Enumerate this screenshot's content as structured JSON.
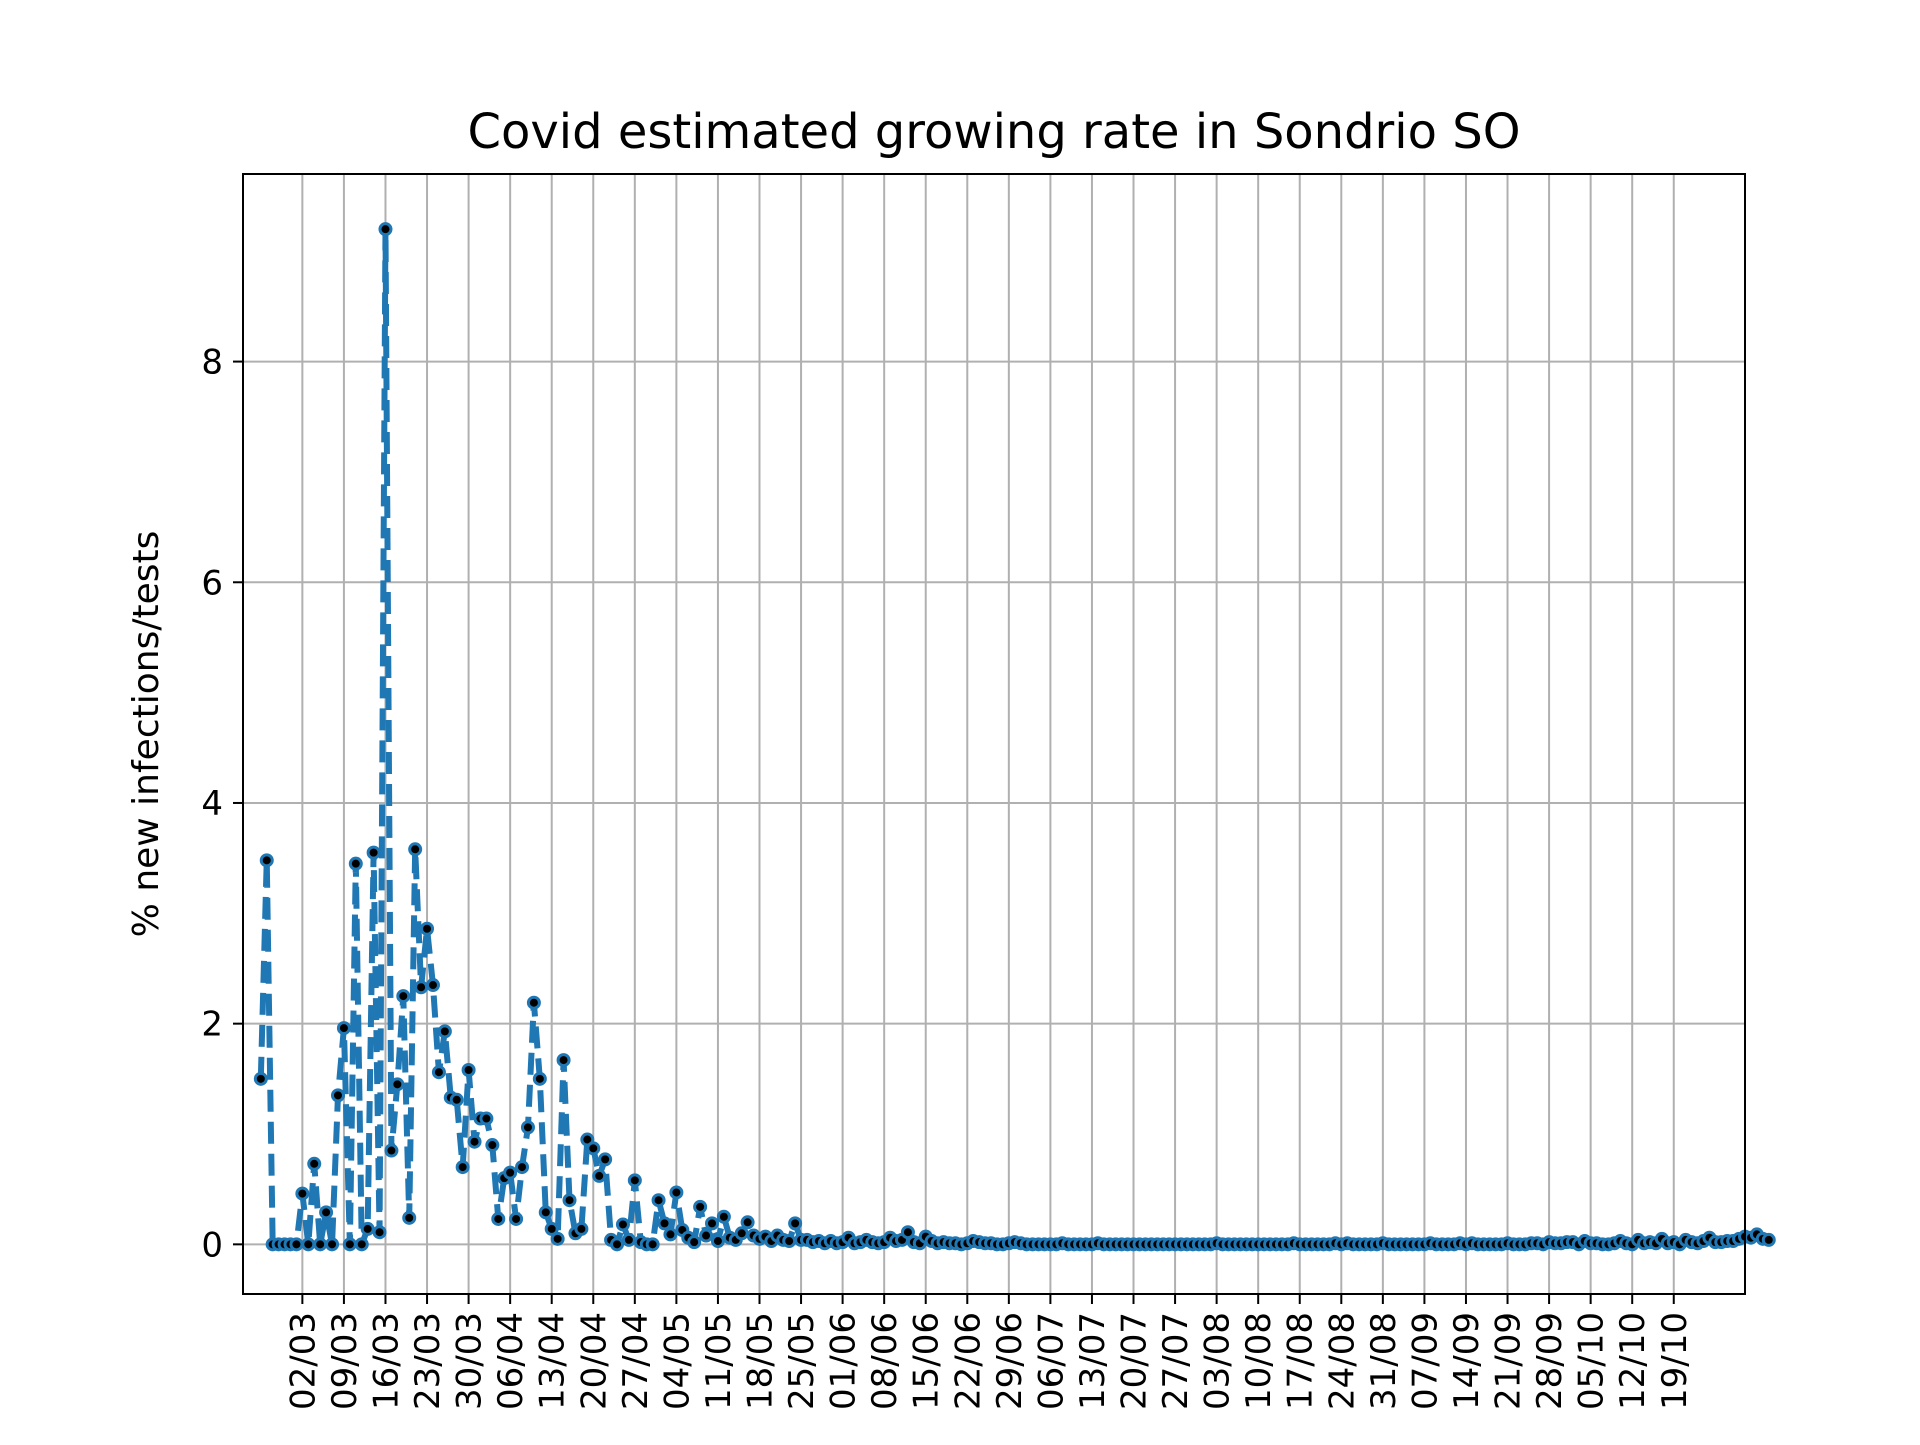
{
  "chart_data": {
    "type": "line",
    "title": "Covid estimated growing rate in Sondrio SO",
    "xlabel": "",
    "ylabel": "% new infections/tests",
    "grid": true,
    "legend": "none",
    "colors": {
      "line": "#1f77b4",
      "marker": "#000000",
      "grid": "#b0b0b0",
      "axes": "#000000"
    },
    "line_style": "dashed",
    "marker_style": "dot",
    "x_start_date": "2020-02-24",
    "x_range": [
      "2020-02-21",
      "2020-10-31"
    ],
    "ylim": [
      -0.45,
      9.7
    ],
    "y_ticks": [
      0,
      2,
      4,
      6,
      8
    ],
    "x_tick_labels": [
      "02/03",
      "09/03",
      "16/03",
      "23/03",
      "30/03",
      "06/04",
      "13/04",
      "20/04",
      "27/04",
      "04/05",
      "11/05",
      "18/05",
      "25/05",
      "01/06",
      "08/06",
      "15/06",
      "22/06",
      "29/06",
      "06/07",
      "13/07",
      "20/07",
      "27/07",
      "03/08",
      "10/08",
      "17/08",
      "24/08",
      "31/08",
      "07/09",
      "14/09",
      "21/09",
      "28/09",
      "05/10",
      "12/10",
      "19/10"
    ],
    "x_tick_dates": [
      "2020-03-02",
      "2020-03-09",
      "2020-03-16",
      "2020-03-23",
      "2020-03-30",
      "2020-04-06",
      "2020-04-13",
      "2020-04-20",
      "2020-04-27",
      "2020-05-04",
      "2020-05-11",
      "2020-05-18",
      "2020-05-25",
      "2020-06-01",
      "2020-06-08",
      "2020-06-15",
      "2020-06-22",
      "2020-06-29",
      "2020-07-06",
      "2020-07-13",
      "2020-07-20",
      "2020-07-27",
      "2020-08-03",
      "2020-08-10",
      "2020-08-17",
      "2020-08-24",
      "2020-08-31",
      "2020-09-07",
      "2020-09-14",
      "2020-09-21",
      "2020-09-28",
      "2020-10-05",
      "2020-10-12",
      "2020-10-19"
    ],
    "series": [
      {
        "name": "",
        "values": [
          1.5,
          3.48,
          0,
          0,
          0,
          0,
          0,
          0.46,
          0,
          0.73,
          0,
          0.29,
          0,
          1.35,
          1.96,
          0,
          3.45,
          0,
          0.14,
          3.55,
          0.11,
          9.2,
          0.85,
          1.45,
          2.25,
          0.24,
          3.58,
          2.33,
          2.86,
          2.35,
          1.56,
          1.93,
          1.33,
          1.31,
          0.7,
          1.58,
          0.93,
          1.14,
          1.14,
          0.9,
          0.23,
          0.6,
          0.65,
          0.23,
          0.7,
          1.06,
          2.19,
          1.5,
          0.29,
          0.14,
          0.05,
          1.67,
          0.4,
          0.1,
          0.14,
          0.95,
          0.87,
          0.62,
          0.77,
          0.04,
          0,
          0.18,
          0.04,
          0.58,
          0.02,
          0,
          0,
          0.4,
          0.19,
          0.09,
          0.47,
          0.13,
          0.06,
          0.02,
          0.34,
          0.08,
          0.19,
          0.03,
          0.25,
          0.06,
          0.04,
          0.1,
          0.2,
          0.08,
          0.05,
          0.07,
          0.03,
          0.08,
          0.04,
          0.03,
          0.19,
          0.04,
          0.04,
          0.02,
          0.03,
          0.01,
          0.03,
          0.01,
          0.02,
          0.06,
          0.01,
          0.02,
          0.04,
          0.02,
          0.01,
          0.02,
          0.06,
          0.03,
          0.04,
          0.11,
          0.02,
          0.01,
          0.07,
          0.03,
          0.01,
          0.02,
          0.01,
          0.01,
          0,
          0.01,
          0.03,
          0.02,
          0.01,
          0.01,
          0,
          0,
          0.01,
          0.02,
          0.01,
          0,
          0,
          0,
          0,
          0,
          0,
          0.01,
          0,
          0,
          0,
          0,
          0,
          0.01,
          0,
          0,
          0,
          0,
          0,
          0,
          0,
          0,
          0,
          0,
          0,
          0,
          0,
          0,
          0,
          0,
          0,
          0,
          0,
          0.01,
          0,
          0,
          0,
          0,
          0,
          0,
          0,
          0,
          0,
          0,
          0,
          0,
          0.01,
          0,
          0,
          0,
          0,
          0,
          0,
          0.01,
          0,
          0.01,
          0,
          0,
          0,
          0,
          0,
          0.01,
          0,
          0,
          0,
          0,
          0,
          0,
          0,
          0.01,
          0,
          0,
          0,
          0,
          0.01,
          0,
          0.01,
          0,
          0,
          0,
          0,
          0,
          0.01,
          0,
          0,
          0,
          0.01,
          0.01,
          0,
          0.02,
          0.01,
          0.01,
          0.02,
          0.02,
          0,
          0.03,
          0.01,
          0.01,
          0,
          0,
          0.01,
          0.03,
          0.01,
          0,
          0.04,
          0.01,
          0.02,
          0.01,
          0.05,
          0.01,
          0.02,
          0,
          0.04,
          0.02,
          0.01,
          0.03,
          0.06,
          0.02,
          0.02,
          0.03,
          0.03,
          0.05,
          0.07,
          0.06,
          0.09,
          0.05,
          0.04
        ]
      }
    ]
  }
}
